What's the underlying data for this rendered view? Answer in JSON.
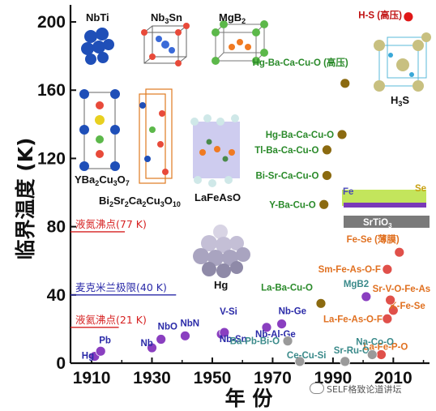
{
  "chart_data": {
    "type": "scatter",
    "title": "",
    "xlabel": "年 份",
    "ylabel": "临界温度 (K)",
    "xlim": [
      1903,
      2022
    ],
    "ylim": [
      0,
      210
    ],
    "x_ticks": [
      "1910",
      "1930",
      "1950",
      "1970",
      "1990",
      "2010"
    ],
    "y_ticks": [
      "0",
      "40",
      "80",
      "120",
      "160",
      "200"
    ],
    "grid": false,
    "reference_lines": [
      {
        "label": "液氮沸点(77 K)",
        "y": 77,
        "x_end": 1921,
        "color": "#d62020"
      },
      {
        "label": "麦克米兰极限(40 K)",
        "y": 40,
        "x_end": 1938,
        "color": "#2a2aa8"
      },
      {
        "label": "液氦沸点(21 K)",
        "y": 21,
        "x_end": 1919,
        "color": "#d62020"
      }
    ],
    "series": [
      {
        "name": "常规超导体",
        "color": "#8a3fc0",
        "points": [
          {
            "label": "Hg",
            "x": 1911,
            "y": 4
          },
          {
            "label": "Pb",
            "x": 1913,
            "y": 7
          },
          {
            "label": "Nb",
            "x": 1930,
            "y": 9
          },
          {
            "label": "NbO",
            "x": 1933,
            "y": 14
          },
          {
            "label": "NbN",
            "x": 1941,
            "y": 16
          },
          {
            "label": "V-Si",
            "x": 1953,
            "y": 17
          },
          {
            "label": "Nb-Sn",
            "x": 1954,
            "y": 18
          },
          {
            "label": "Nb-Al-Ge",
            "x": 1968,
            "y": 21
          },
          {
            "label": "Nb-Ge",
            "x": 1973,
            "y": 23
          },
          {
            "label": "MgB2",
            "x": 2001,
            "y": 39
          },
          {
            "label": "H-S (高压)",
            "x": 2015,
            "y": 203
          }
        ]
      },
      {
        "name": "铜氧化物",
        "color": "#8b6a10",
        "points": [
          {
            "label": "La-Ba-Cu-O",
            "x": 1986,
            "y": 35
          },
          {
            "label": "Y-Ba-Cu-O",
            "x": 1987,
            "y": 93
          },
          {
            "label": "Bi-Sr-Ca-Cu-O",
            "x": 1988,
            "y": 110
          },
          {
            "label": "Tl-Ba-Ca-Cu-O",
            "x": 1988,
            "y": 125
          },
          {
            "label": "Hg-Ba-Ca-Cu-O",
            "x": 1993,
            "y": 134
          },
          {
            "label": "Hg-Ba-Ca-Cu-O (高压)",
            "x": 1994,
            "y": 164
          }
        ]
      },
      {
        "name": "铁基超导体",
        "color": "#e0504a",
        "points": [
          {
            "label": "La-Fe-As-O-F",
            "x": 2008,
            "y": 26
          },
          {
            "label": "K-Fe-Se",
            "x": 2010,
            "y": 31
          },
          {
            "label": "La-Fe-P-O",
            "x": 2006,
            "y": 5
          },
          {
            "label": "Sr-V-O-Fe-As",
            "x": 2009,
            "y": 37
          },
          {
            "label": "Sm-Fe-As-O-F",
            "x": 2008,
            "y": 55
          },
          {
            "label": "Fe-Se (薄膜)",
            "x": 2012,
            "y": 65
          }
        ]
      },
      {
        "name": "其他",
        "color": "#9a9a9a",
        "points": [
          {
            "label": "Ba-Pb-Bi-O",
            "x": 1975,
            "y": 13
          },
          {
            "label": "Ce-Cu-Si",
            "x": 1979,
            "y": 1
          },
          {
            "label": "Sr-Ru-O",
            "x": 1994,
            "y": 1
          },
          {
            "label": "Na-Co-O",
            "x": 2003,
            "y": 5
          }
        ]
      }
    ],
    "structure_labels": [
      "NbTi",
      "Nb3Sn",
      "MgB2",
      "YBa2Cu3O7",
      "Bi2Sr2Ca2Cu3O10",
      "LaFeAsO",
      "Hg",
      "H3S",
      "SrTiO3",
      "Fe",
      "Se"
    ]
  },
  "watermark": "SELF格致论道讲坛"
}
